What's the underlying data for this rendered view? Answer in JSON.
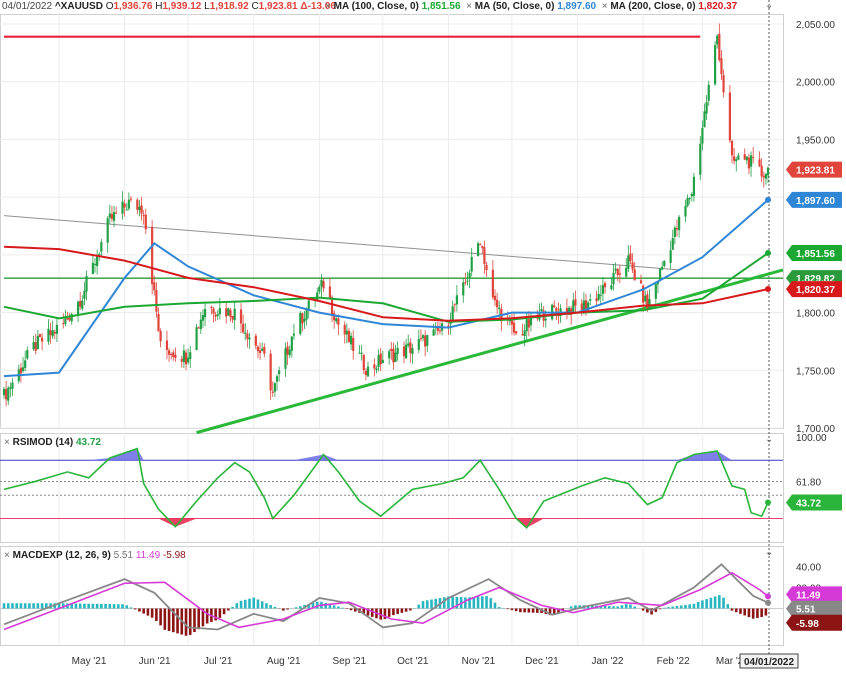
{
  "colors": {
    "bg": "#ffffff",
    "up": "#22a046",
    "down": "#e0443a",
    "ma50": "#2f86d6",
    "ma100": "#1aa832",
    "ma200": "#d7191c",
    "resistance": "#e8203a",
    "support": "#29b838",
    "level": "#2a9a3a",
    "trend": "#909090",
    "rsi": "#2ab53a",
    "rsi_upper": "#3a3ac8",
    "rsi_lower": "#e8406a",
    "rsi_over": "#6a6ae8",
    "rsi_under": "#e8204a",
    "macd": "#888888",
    "signal": "#d63ad6",
    "hist_pos": "#27b5c0",
    "hist_neg": "#8c1414",
    "grid": "#ececec",
    "axis_text": "#333333"
  },
  "header": {
    "date": "04/01/2022",
    "symbol": "^XAUUSD",
    "o_key": "O",
    "o_val": "1,936.76",
    "h_key": "H",
    "h_val": "1,939.12",
    "l_key": "L",
    "l_val": "1,918.92",
    "c_key": "C",
    "c_val": "1,923.81",
    "chg": "Δ-13.06",
    "ma100_label": "MA (100, Close, 0)",
    "ma100_val": "1,851.56",
    "ma50_label": "MA (50, Close, 0)",
    "ma50_val": "1,897.60",
    "ma200_label": "MA (200, Close, 0)",
    "ma200_val": "1,820.37",
    "close_icon": "close-icon",
    "menu_icon": "chevron-down-icon"
  },
  "chart_data": [
    {
      "type": "candlestick",
      "symbol": "^XAUUSD",
      "x_range": [
        "2021-04-05",
        "2022-04-01"
      ],
      "ylim": [
        1700,
        2050
      ],
      "y_ticks": [
        "2,050.00",
        "2,000.00",
        "1,950.00",
        "1,900.00",
        "1,850.00",
        "1,800.00",
        "1,750.00",
        "1,700.00"
      ],
      "y_tick_values": [
        2050,
        2000,
        1950,
        1900,
        1850,
        1800,
        1750,
        1700
      ],
      "x_ticks": [
        "May '21",
        "Jun '21",
        "Jul '21",
        "Aug '21",
        "Sep '21",
        "Oct '21",
        "Nov '21",
        "Dec '21",
        "Jan '22",
        "Feb '22",
        "Mar '22"
      ],
      "x_tick_dates": [
        "2021-05-01",
        "2021-06-01",
        "2021-07-01",
        "2021-08-01",
        "2021-09-01",
        "2021-10-01",
        "2021-11-01",
        "2021-12-01",
        "2022-01-01",
        "2022-02-01",
        "2022-03-01"
      ],
      "last_date": "04/01/2022",
      "close_points": [
        [
          "2021-04-05",
          1728
        ],
        [
          "2021-04-19",
          1770
        ],
        [
          "2021-05-03",
          1790
        ],
        [
          "2021-05-12",
          1815
        ],
        [
          "2021-05-25",
          1880
        ],
        [
          "2021-06-03",
          1895
        ],
        [
          "2021-06-10",
          1890
        ],
        [
          "2021-06-18",
          1770
        ],
        [
          "2021-06-30",
          1762
        ],
        [
          "2021-07-09",
          1805
        ],
        [
          "2021-07-23",
          1800
        ],
        [
          "2021-08-06",
          1760
        ],
        [
          "2021-08-10",
          1730
        ],
        [
          "2021-08-20",
          1785
        ],
        [
          "2021-09-03",
          1825
        ],
        [
          "2021-09-10",
          1790
        ],
        [
          "2021-09-24",
          1750
        ],
        [
          "2021-10-01",
          1760
        ],
        [
          "2021-10-15",
          1770
        ],
        [
          "2021-10-29",
          1785
        ],
        [
          "2021-11-08",
          1820
        ],
        [
          "2021-11-16",
          1865
        ],
        [
          "2021-11-22",
          1810
        ],
        [
          "2021-12-03",
          1780
        ],
        [
          "2021-12-16",
          1800
        ],
        [
          "2022-01-03",
          1805
        ],
        [
          "2022-01-14",
          1820
        ],
        [
          "2022-01-25",
          1845
        ],
        [
          "2022-02-03",
          1805
        ],
        [
          "2022-02-14",
          1860
        ],
        [
          "2022-02-24",
          1905
        ],
        [
          "2022-03-08",
          2040
        ],
        [
          "2022-03-15",
          1930
        ],
        [
          "2022-03-21",
          1935
        ],
        [
          "2022-03-29",
          1920
        ],
        [
          "2022-04-01",
          1924
        ]
      ],
      "series": [
        {
          "name": "MA (50, Close, 0)",
          "last": 1897.6,
          "points": [
            [
              "2021-04-05",
              1745
            ],
            [
              "2021-05-01",
              1748
            ],
            [
              "2021-06-01",
              1830
            ],
            [
              "2021-06-15",
              1860
            ],
            [
              "2021-07-01",
              1840
            ],
            [
              "2021-08-01",
              1815
            ],
            [
              "2021-09-01",
              1800
            ],
            [
              "2021-10-01",
              1790
            ],
            [
              "2021-11-01",
              1787
            ],
            [
              "2021-12-01",
              1800
            ],
            [
              "2022-01-01",
              1800
            ],
            [
              "2022-02-01",
              1820
            ],
            [
              "2022-03-01",
              1848
            ],
            [
              "2022-04-01",
              1897.6
            ]
          ]
        },
        {
          "name": "MA (100, Close, 0)",
          "last": 1851.56,
          "points": [
            [
              "2021-04-05",
              1805
            ],
            [
              "2021-05-01",
              1795
            ],
            [
              "2021-06-01",
              1805
            ],
            [
              "2021-07-01",
              1808
            ],
            [
              "2021-08-01",
              1810
            ],
            [
              "2021-09-01",
              1813
            ],
            [
              "2021-10-01",
              1808
            ],
            [
              "2021-11-01",
              1792
            ],
            [
              "2021-12-01",
              1794
            ],
            [
              "2022-01-01",
              1800
            ],
            [
              "2022-02-01",
              1802
            ],
            [
              "2022-03-01",
              1812
            ],
            [
              "2022-04-01",
              1851.56
            ]
          ]
        },
        {
          "name": "MA (200, Close, 0)",
          "last": 1820.37,
          "points": [
            [
              "2021-04-05",
              1857
            ],
            [
              "2021-05-01",
              1855
            ],
            [
              "2021-06-01",
              1845
            ],
            [
              "2021-07-01",
              1830
            ],
            [
              "2021-08-01",
              1822
            ],
            [
              "2021-09-01",
              1810
            ],
            [
              "2021-10-01",
              1796
            ],
            [
              "2021-11-01",
              1793
            ],
            [
              "2021-12-01",
              1795
            ],
            [
              "2022-01-01",
              1800
            ],
            [
              "2022-02-01",
              1806
            ],
            [
              "2022-03-01",
              1808
            ],
            [
              "2022-04-01",
              1820.37
            ]
          ]
        }
      ],
      "levels": [
        {
          "name": "resistance",
          "value": 2039,
          "from": "2021-04-05",
          "to": "2022-02-28"
        },
        {
          "name": "horizontal",
          "value": 1829.82,
          "from": "2021-04-05",
          "to": "2022-04-01"
        }
      ],
      "trendlines": [
        {
          "name": "descending",
          "from": [
            "2021-04-05",
            1884
          ],
          "to": [
            "2022-02-18",
            1837
          ]
        },
        {
          "name": "support",
          "from": [
            "2021-07-05",
            1696
          ],
          "to": [
            "2022-04-01",
            1830
          ]
        }
      ],
      "price_labels": [
        {
          "text": "1,923.81",
          "value": 1923.81,
          "color": "down"
        },
        {
          "text": "1,897.60",
          "value": 1897.6,
          "color": "ma50"
        },
        {
          "text": "1,851.56",
          "value": 1851.56,
          "color": "ma100"
        },
        {
          "text": "1,829.82",
          "value": 1829.82,
          "color": "level"
        },
        {
          "text": "1,820.37",
          "value": 1820.37,
          "color": "ma200"
        }
      ]
    },
    {
      "type": "line",
      "title": "RSIMOD (14)",
      "last": "43.72",
      "ylim": [
        15,
        100
      ],
      "upper": 80,
      "lower": 30,
      "mid_lines": [
        61.8,
        50
      ],
      "y_ticks": [
        "100.00",
        "61.80",
        "43.72"
      ],
      "y_tick_values": [
        100,
        61.8,
        43.72
      ],
      "points": [
        [
          "2021-04-05",
          55
        ],
        [
          "2021-04-20",
          62
        ],
        [
          "2021-05-05",
          70
        ],
        [
          "2021-05-15",
          65
        ],
        [
          "2021-05-25",
          82
        ],
        [
          "2021-06-07",
          90
        ],
        [
          "2021-06-10",
          60
        ],
        [
          "2021-06-17",
          38
        ],
        [
          "2021-06-25",
          23
        ],
        [
          "2021-07-05",
          45
        ],
        [
          "2021-07-15",
          65
        ],
        [
          "2021-07-23",
          78
        ],
        [
          "2021-07-30",
          70
        ],
        [
          "2021-08-06",
          48
        ],
        [
          "2021-08-10",
          30
        ],
        [
          "2021-08-20",
          50
        ],
        [
          "2021-09-03",
          85
        ],
        [
          "2021-09-10",
          70
        ],
        [
          "2021-09-20",
          45
        ],
        [
          "2021-09-30",
          32
        ],
        [
          "2021-10-15",
          55
        ],
        [
          "2021-10-29",
          60
        ],
        [
          "2021-11-08",
          65
        ],
        [
          "2021-11-16",
          80
        ],
        [
          "2021-11-25",
          55
        ],
        [
          "2021-12-03",
          30
        ],
        [
          "2021-12-08",
          22
        ],
        [
          "2021-12-16",
          45
        ],
        [
          "2022-01-03",
          58
        ],
        [
          "2022-01-14",
          65
        ],
        [
          "2022-01-25",
          60
        ],
        [
          "2022-02-03",
          42
        ],
        [
          "2022-02-10",
          48
        ],
        [
          "2022-02-17",
          78
        ],
        [
          "2022-02-25",
          85
        ],
        [
          "2022-03-08",
          88
        ],
        [
          "2022-03-15",
          58
        ],
        [
          "2022-03-21",
          55
        ],
        [
          "2022-03-24",
          35
        ],
        [
          "2022-03-29",
          32
        ],
        [
          "2022-04-01",
          43.72
        ]
      ]
    },
    {
      "type": "bar",
      "title": "MACDEXP (12, 26, 9)",
      "macd_last": "5.51",
      "signal_last": "11.49",
      "hist_last": "-5.98",
      "ylim": [
        -30,
        50
      ],
      "y_ticks": [
        "40.00",
        "20.00",
        "11.49",
        "5.51",
        "-5.98"
      ],
      "y_tick_values": [
        40,
        20,
        11.49,
        5.51,
        -5.98
      ],
      "series": [
        {
          "name": "MACD",
          "points": [
            [
              "2021-04-05",
              -15
            ],
            [
              "2021-05-01",
              5
            ],
            [
              "2021-06-01",
              28
            ],
            [
              "2021-06-15",
              15
            ],
            [
              "2021-07-01",
              -18
            ],
            [
              "2021-07-15",
              -20
            ],
            [
              "2021-08-01",
              -5
            ],
            [
              "2021-08-15",
              -12
            ],
            [
              "2021-09-01",
              10
            ],
            [
              "2021-09-15",
              5
            ],
            [
              "2021-10-01",
              -18
            ],
            [
              "2021-10-15",
              -14
            ],
            [
              "2021-11-01",
              10
            ],
            [
              "2021-11-20",
              28
            ],
            [
              "2021-12-05",
              8
            ],
            [
              "2021-12-20",
              -6
            ],
            [
              "2022-01-05",
              2
            ],
            [
              "2022-01-25",
              10
            ],
            [
              "2022-02-05",
              -2
            ],
            [
              "2022-02-25",
              20
            ],
            [
              "2022-03-10",
              42
            ],
            [
              "2022-03-25",
              12
            ],
            [
              "2022-04-01",
              5.51
            ]
          ]
        },
        {
          "name": "Signal",
          "points": [
            [
              "2021-04-05",
              -20
            ],
            [
              "2021-05-01",
              0
            ],
            [
              "2021-06-01",
              24
            ],
            [
              "2021-06-20",
              25
            ],
            [
              "2021-07-10",
              -5
            ],
            [
              "2021-07-25",
              -18
            ],
            [
              "2021-08-15",
              -10
            ],
            [
              "2021-09-01",
              3
            ],
            [
              "2021-09-15",
              6
            ],
            [
              "2021-10-05",
              -10
            ],
            [
              "2021-10-20",
              -14
            ],
            [
              "2021-11-10",
              8
            ],
            [
              "2021-11-25",
              20
            ],
            [
              "2021-12-15",
              3
            ],
            [
              "2021-12-30",
              -4
            ],
            [
              "2022-01-20",
              6
            ],
            [
              "2022-02-10",
              3
            ],
            [
              "2022-02-28",
              18
            ],
            [
              "2022-03-15",
              34
            ],
            [
              "2022-03-28",
              18
            ],
            [
              "2022-04-01",
              11.49
            ]
          ]
        }
      ]
    }
  ]
}
